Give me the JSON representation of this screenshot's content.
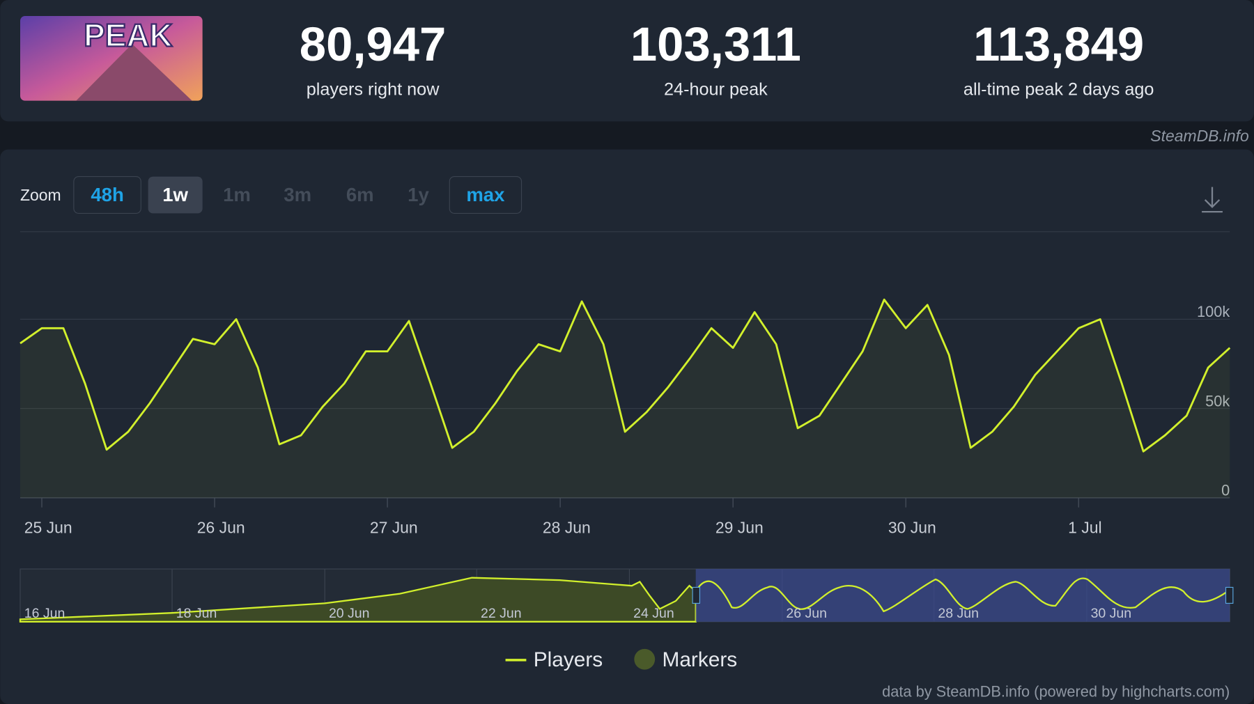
{
  "header": {
    "game_logo": "PEAK",
    "stats": [
      {
        "value": "80,947",
        "label": "players right now"
      },
      {
        "value": "103,311",
        "label": "24-hour peak"
      },
      {
        "value": "113,849",
        "label": "all-time peak 2 days ago"
      }
    ],
    "source": "SteamDB.info"
  },
  "toolbar": {
    "zoom_label": "Zoom",
    "zoom_options": [
      "48h",
      "1w",
      "1m",
      "3m",
      "6m",
      "1y",
      "max"
    ]
  },
  "navigator": {
    "labels": [
      "16 Jun",
      "18 Jun",
      "20 Jun",
      "22 Jun",
      "24 Jun",
      "26 Jun",
      "28 Jun",
      "30 Jun"
    ]
  },
  "chart_data": {
    "type": "line",
    "categories": [
      null,
      "25 Jun",
      null,
      null,
      null,
      null,
      null,
      null,
      null,
      "26 Jun",
      null,
      null,
      null,
      null,
      null,
      null,
      null,
      "27 Jun",
      null,
      null,
      null,
      null,
      null,
      null,
      null,
      "28 Jun",
      null,
      null,
      null,
      null,
      null,
      null,
      null,
      "29 Jun",
      null,
      null,
      null,
      null,
      null,
      null,
      null,
      "30 Jun",
      null,
      null,
      null,
      null,
      null,
      null,
      null,
      "1 Jul",
      null,
      null,
      null,
      null,
      null,
      null,
      null
    ],
    "series": [
      {
        "name": "Players",
        "color": "#d2f02c",
        "values": [
          86500,
          95000,
          95000,
          64000,
          27000,
          37000,
          53000,
          71000,
          89000,
          86000,
          100000,
          73000,
          30000,
          35000,
          51000,
          64000,
          82000,
          82000,
          99000,
          64000,
          28000,
          37000,
          53000,
          71000,
          86000,
          82000,
          110000,
          86000,
          37000,
          48000,
          62000,
          78000,
          95000,
          84000,
          104000,
          86000,
          39000,
          46000,
          64000,
          82000,
          111000,
          95000,
          108000,
          80000,
          28000,
          37000,
          51000,
          69000,
          82000,
          95000,
          100000,
          64000,
          26000,
          35000,
          46000,
          73000,
          84000
        ]
      }
    ],
    "markers_label": "Markers",
    "ylim": [
      0,
      149000
    ],
    "yticks": [
      0,
      {
        "value": 50000,
        "label": "50k"
      },
      {
        "value": 100000,
        "label": "100k"
      }
    ],
    "grid": true,
    "credits": "data by SteamDB.info (powered by highcharts.com)"
  }
}
